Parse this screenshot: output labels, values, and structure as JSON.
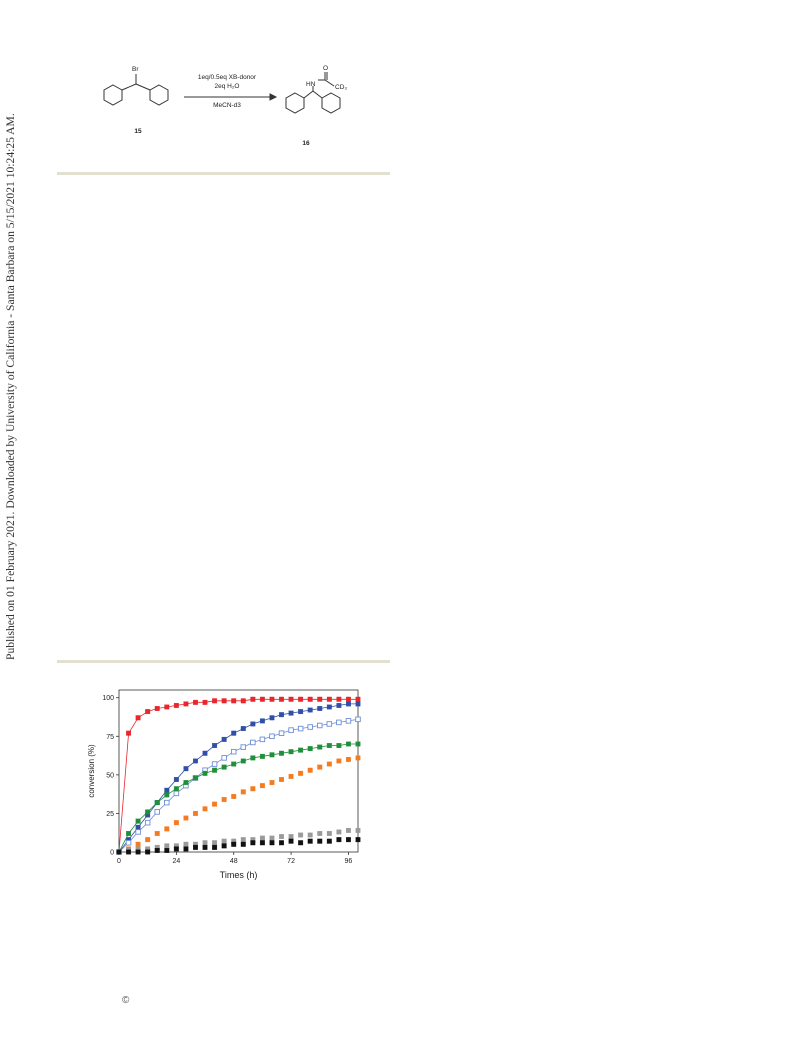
{
  "sidebar_note": "Published on 01 February 2021. Downloaded by University of California - Santa Barbara on 5/15/2021 10:24:25 AM.",
  "scheme": {
    "reactant_atom": "Br",
    "condition_line1": "1eq/0.5eq XB-donor",
    "condition_line2": "2eq H₂O",
    "solvent": "MeCN-d3",
    "reactant_label": "15",
    "product_label": "16",
    "product_nh": "HN",
    "product_o": "O",
    "product_cd3": "CD₃"
  },
  "copyright_symbol": "©",
  "chart_data": {
    "type": "scatter",
    "xlabel": "Times (h)",
    "ylabel": "conversion (%)",
    "xlim": [
      0,
      100
    ],
    "ylim": [
      0,
      105
    ],
    "xticks": [
      "0",
      "24",
      "48",
      "72",
      "96"
    ],
    "yticks": [
      "0",
      "25",
      "50",
      "75",
      "100"
    ],
    "grid": false,
    "series": [
      {
        "color": "#e8262b",
        "marker": "filled-square",
        "line": true,
        "x": [
          0,
          4,
          8,
          12,
          16,
          20,
          24,
          28,
          32,
          36,
          40,
          44,
          48,
          52,
          56,
          60,
          64,
          68,
          72,
          76,
          80,
          84,
          88,
          92,
          96,
          100
        ],
        "y": [
          0,
          77,
          87,
          91,
          93,
          94,
          95,
          96,
          97,
          97,
          98,
          98,
          98,
          98,
          99,
          99,
          99,
          99,
          99,
          99,
          99,
          99,
          99,
          99,
          99,
          99
        ]
      },
      {
        "color": "#2f4fa8",
        "marker": "filled-square",
        "line": true,
        "x": [
          0,
          4,
          8,
          12,
          16,
          20,
          24,
          28,
          32,
          36,
          40,
          44,
          48,
          52,
          56,
          60,
          64,
          68,
          72,
          76,
          80,
          84,
          88,
          92,
          96,
          100
        ],
        "y": [
          0,
          8,
          16,
          24,
          32,
          40,
          47,
          54,
          59,
          64,
          69,
          73,
          77,
          80,
          83,
          85,
          87,
          89,
          90,
          91,
          92,
          93,
          94,
          95,
          96,
          96
        ]
      },
      {
        "color": "#6c8ed6",
        "marker": "open-square",
        "line": true,
        "x": [
          0,
          4,
          8,
          12,
          16,
          20,
          24,
          28,
          32,
          36,
          40,
          44,
          48,
          52,
          56,
          60,
          64,
          68,
          72,
          76,
          80,
          84,
          88,
          92,
          96,
          100
        ],
        "y": [
          0,
          6,
          13,
          19,
          26,
          32,
          38,
          43,
          48,
          53,
          57,
          61,
          65,
          68,
          71,
          73,
          75,
          77,
          79,
          80,
          81,
          82,
          83,
          84,
          85,
          86
        ]
      },
      {
        "color": "#1f8f3a",
        "marker": "filled-square",
        "line": true,
        "x": [
          0,
          4,
          8,
          12,
          16,
          20,
          24,
          28,
          32,
          36,
          40,
          44,
          48,
          52,
          56,
          60,
          64,
          68,
          72,
          76,
          80,
          84,
          88,
          92,
          96,
          100
        ],
        "y": [
          0,
          12,
          20,
          26,
          32,
          37,
          41,
          45,
          48,
          51,
          53,
          55,
          57,
          59,
          61,
          62,
          63,
          64,
          65,
          66,
          67,
          68,
          69,
          69,
          70,
          70
        ]
      },
      {
        "color": "#f47b20",
        "marker": "filled-square",
        "line": false,
        "x": [
          0,
          4,
          8,
          12,
          16,
          20,
          24,
          28,
          32,
          36,
          40,
          44,
          48,
          52,
          56,
          60,
          64,
          68,
          72,
          76,
          80,
          84,
          88,
          92,
          96,
          100
        ],
        "y": [
          0,
          2,
          5,
          8,
          12,
          15,
          19,
          22,
          25,
          28,
          31,
          34,
          36,
          39,
          41,
          43,
          45,
          47,
          49,
          51,
          53,
          55,
          57,
          59,
          60,
          61
        ]
      },
      {
        "color": "#9a9a9a",
        "marker": "filled-square",
        "line": false,
        "x": [
          0,
          4,
          8,
          12,
          16,
          20,
          24,
          28,
          32,
          36,
          40,
          44,
          48,
          52,
          56,
          60,
          64,
          68,
          72,
          76,
          80,
          84,
          88,
          92,
          96,
          100
        ],
        "y": [
          0,
          1,
          2,
          2,
          3,
          4,
          4,
          5,
          5,
          6,
          6,
          7,
          7,
          8,
          8,
          9,
          9,
          10,
          10,
          11,
          11,
          12,
          12,
          13,
          14,
          14
        ]
      },
      {
        "color": "#111111",
        "marker": "filled-square",
        "line": false,
        "x": [
          0,
          4,
          8,
          12,
          16,
          20,
          24,
          28,
          32,
          36,
          40,
          44,
          48,
          52,
          56,
          60,
          64,
          68,
          72,
          76,
          80,
          84,
          88,
          92,
          96,
          100
        ],
        "y": [
          0,
          0,
          0,
          0,
          1,
          1,
          2,
          2,
          3,
          3,
          3,
          4,
          5,
          5,
          6,
          6,
          6,
          6,
          7,
          6,
          7,
          7,
          7,
          8,
          8,
          8
        ]
      }
    ]
  }
}
